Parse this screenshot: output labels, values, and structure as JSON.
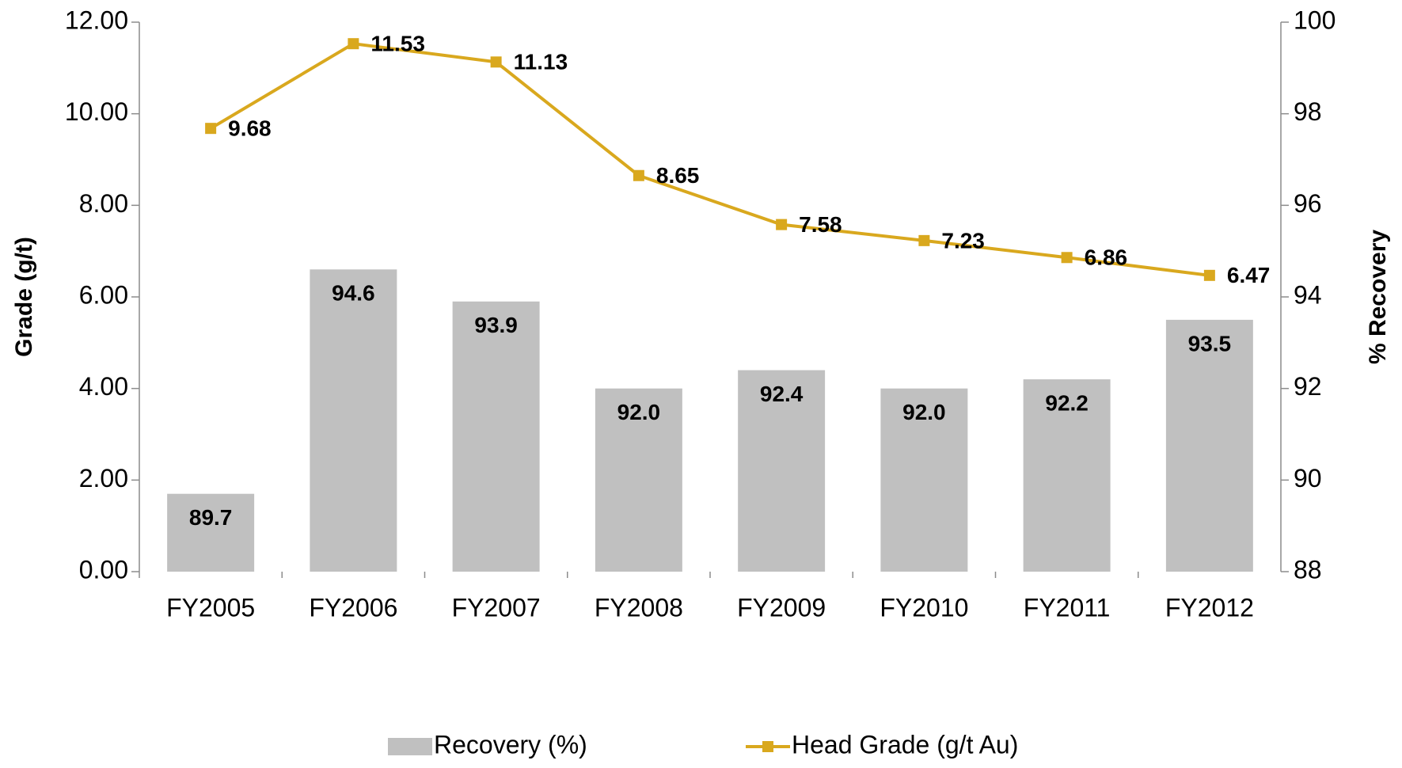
{
  "chart_data": {
    "type": "combo",
    "y_label": "Grade (g/t)",
    "y2_label": "% Recovery",
    "categories": [
      "FY2005",
      "FY2006",
      "FY2007",
      "FY2008",
      "FY2009",
      "FY2010",
      "FY2011",
      "FY2012"
    ],
    "series": [
      {
        "name": "Recovery (%)",
        "type": "bar",
        "axis": "y2",
        "color": "#c0c0c0",
        "values": [
          89.7,
          94.6,
          93.9,
          92.0,
          92.4,
          92.0,
          92.2,
          93.5
        ],
        "value_labels": [
          "89.7",
          "94.6",
          "93.9",
          "92.0",
          "92.4",
          "92.0",
          "92.2",
          "93.5"
        ]
      },
      {
        "name": "Head Grade (g/t Au)",
        "type": "line",
        "color": "#d9a81e",
        "values": [
          9.68,
          11.53,
          11.13,
          8.65,
          7.58,
          7.23,
          6.86,
          6.47
        ]
      }
    ],
    "ylim": [
      0,
      12
    ],
    "yticks": [
      {
        "value": 0,
        "label": "0.00"
      },
      {
        "value": 2,
        "label": "2.00"
      },
      {
        "value": 4,
        "label": "4.00"
      },
      {
        "value": 6,
        "label": "6.00"
      },
      {
        "value": 8,
        "label": "8.00"
      },
      {
        "value": 10,
        "label": "10.00"
      },
      {
        "value": 12,
        "label": "12.00"
      }
    ],
    "y2lim": [
      88,
      100
    ],
    "y2ticks": [
      88,
      90,
      92,
      94,
      96,
      98,
      100
    ],
    "legend": "bottom"
  }
}
